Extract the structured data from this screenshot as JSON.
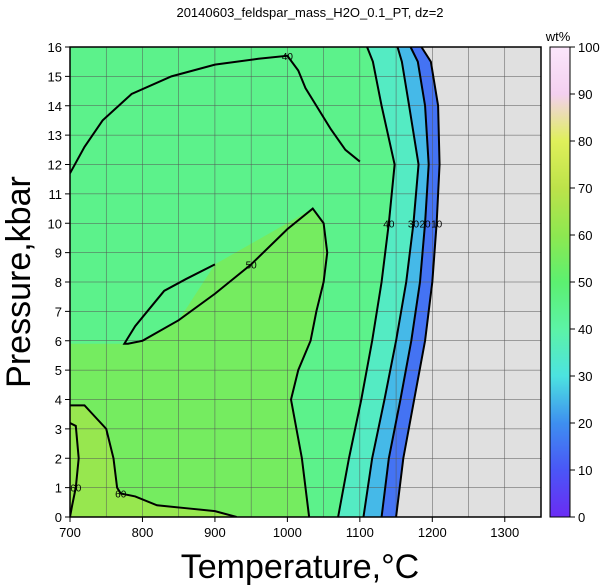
{
  "chart_data": {
    "type": "heatmap",
    "title": "20140603_feldspar_mass_H2O_0.1_PT, dz=2",
    "xlabel": "Temperature,°C",
    "ylabel": "Pressure,kbar",
    "xlim": [
      700,
      1350
    ],
    "ylim": [
      0,
      16
    ],
    "x_ticks": [
      "700",
      "800",
      "900",
      "1000",
      "1100",
      "1200",
      "1300"
    ],
    "y_ticks": [
      "0",
      "1",
      "2",
      "3",
      "4",
      "5",
      "6",
      "7",
      "8",
      "9",
      "10",
      "11",
      "12",
      "13",
      "14",
      "15",
      "16"
    ],
    "grid": true,
    "colorbar": {
      "label": "wt%",
      "range": [
        0,
        100
      ],
      "ticks": [
        "0",
        "10",
        "20",
        "30",
        "40",
        "50",
        "60",
        "70",
        "80",
        "90",
        "100"
      ],
      "colors": [
        "#6a2cf4",
        "#4a56f6",
        "#3e8ff0",
        "#4ce3e0",
        "#5cf3a6",
        "#5cf070",
        "#8ee850",
        "#bde24a",
        "#dff05a",
        "#f3d0f0",
        "#fbe6fb"
      ]
    },
    "no_data_color": "#e0e0e0",
    "series": [
      {
        "name": "10",
        "level": 10,
        "points": [
          [
            1150,
            0
          ],
          [
            1160,
            2
          ],
          [
            1175,
            4
          ],
          [
            1190,
            6
          ],
          [
            1200,
            8
          ],
          [
            1206,
            10
          ],
          [
            1210,
            12
          ],
          [
            1208,
            14
          ],
          [
            1198,
            15.5
          ],
          [
            1185,
            16
          ]
        ]
      },
      {
        "name": "20",
        "level": 20,
        "points": [
          [
            1130,
            0
          ],
          [
            1140,
            2
          ],
          [
            1156,
            4
          ],
          [
            1171,
            6
          ],
          [
            1183,
            8
          ],
          [
            1190,
            10
          ],
          [
            1195,
            12
          ],
          [
            1190,
            14
          ],
          [
            1180,
            15.5
          ],
          [
            1170,
            16
          ]
        ]
      },
      {
        "name": "30",
        "level": 30,
        "points": [
          [
            1105,
            0
          ],
          [
            1117,
            2
          ],
          [
            1134,
            4
          ],
          [
            1150,
            6
          ],
          [
            1164,
            8
          ],
          [
            1174,
            10
          ],
          [
            1181,
            12
          ],
          [
            1168,
            14
          ],
          [
            1158,
            15.5
          ],
          [
            1152,
            16
          ]
        ]
      },
      {
        "name": "40",
        "level": 40,
        "points": [
          [
            1070,
            0
          ],
          [
            1085,
            2
          ],
          [
            1102,
            4
          ],
          [
            1117,
            6
          ],
          [
            1130,
            8
          ],
          [
            1140,
            10
          ],
          [
            1148,
            12
          ],
          [
            1130,
            14
          ],
          [
            1118,
            15.5
          ],
          [
            1110,
            16
          ]
        ]
      },
      {
        "name": "40",
        "level": 40,
        "points": [
          [
            700,
            11.7
          ],
          [
            720,
            12.6
          ],
          [
            745,
            13.5
          ],
          [
            785,
            14.4
          ],
          [
            840,
            15.0
          ],
          [
            900,
            15.4
          ],
          [
            960,
            15.6
          ],
          [
            1000,
            15.7
          ],
          [
            1015,
            15.2
          ],
          [
            1025,
            14.6
          ],
          [
            1040,
            14.0
          ],
          [
            1060,
            13.2
          ],
          [
            1080,
            12.5
          ],
          [
            1100,
            12.1
          ]
        ]
      },
      {
        "name": "50",
        "level": 50,
        "points": [
          [
            1030,
            0
          ],
          [
            1020,
            2
          ],
          [
            1005,
            4
          ],
          [
            1015,
            5
          ],
          [
            1032,
            6
          ],
          [
            1040,
            7
          ],
          [
            1050,
            8
          ],
          [
            1055,
            9
          ],
          [
            1050,
            10
          ],
          [
            1035,
            10.5
          ],
          [
            1000,
            9.8
          ],
          [
            950,
            8.6
          ],
          [
            900,
            7.6
          ],
          [
            850,
            6.7
          ],
          [
            800,
            6.0
          ],
          [
            780,
            5.9
          ],
          [
            775,
            5.9
          ],
          [
            790,
            6.5
          ],
          [
            810,
            7.1
          ],
          [
            830,
            7.7
          ],
          [
            860,
            8.1
          ],
          [
            900,
            8.6
          ]
        ]
      },
      {
        "name": "60",
        "level": 60,
        "points": [
          [
            700,
            3.8
          ],
          [
            720,
            3.8
          ],
          [
            735,
            3.4
          ],
          [
            750,
            3.0
          ],
          [
            760,
            2.0
          ],
          [
            765,
            1.0
          ],
          [
            770,
            0.8
          ],
          [
            790,
            0.7
          ],
          [
            820,
            0.4
          ],
          [
            860,
            0.3
          ],
          [
            900,
            0.2
          ],
          [
            930,
            0
          ]
        ]
      },
      {
        "name": "60",
        "level": 60,
        "points": [
          [
            700,
            3.2
          ],
          [
            708,
            3.1
          ],
          [
            712,
            2.0
          ],
          [
            708,
            1.0
          ],
          [
            703,
            0.4
          ],
          [
            700,
            0
          ]
        ]
      }
    ]
  }
}
